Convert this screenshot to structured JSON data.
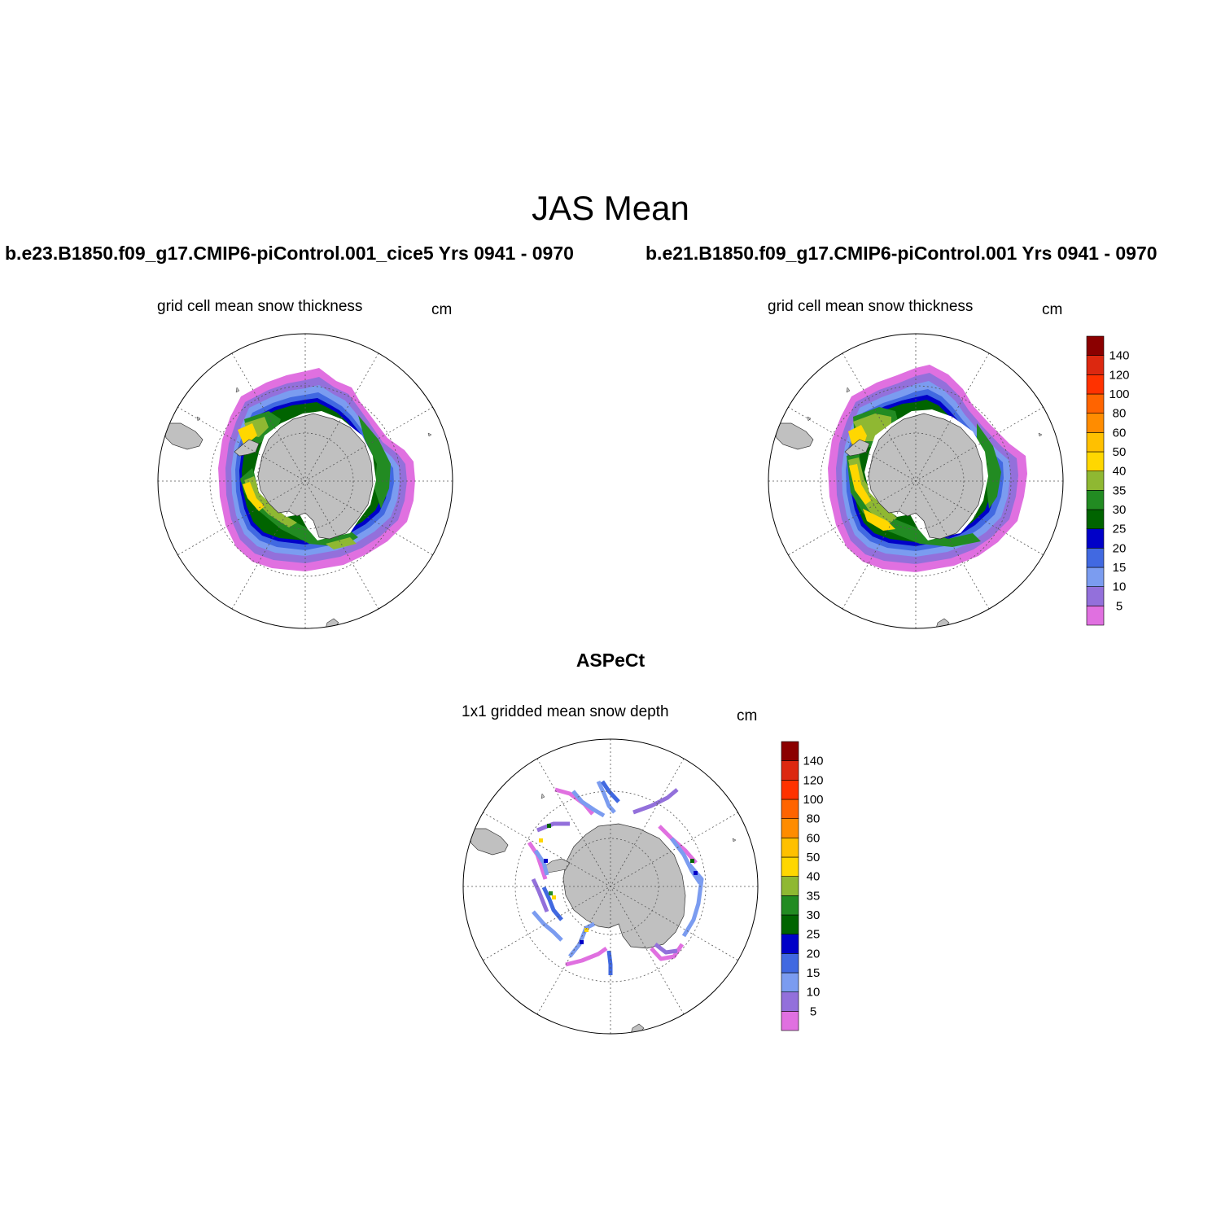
{
  "title": "JAS Mean",
  "panels": [
    {
      "case": "b.e23.B1850.f09_g17.CMIP6-piControl.001_cice5  Yrs 0941 - 0970",
      "variable": "grid cell mean snow thickness",
      "units": "cm"
    },
    {
      "case": "b.e21.B1850.f09_g17.CMIP6-piControl.001  Yrs 0941 - 0970",
      "variable": "grid cell mean snow thickness",
      "units": "cm"
    },
    {
      "case": "ASPeCt",
      "variable": "1x1 gridded mean snow depth",
      "units": "cm"
    }
  ],
  "colorbar": {
    "labels": [
      "5",
      "10",
      "15",
      "20",
      "25",
      "30",
      "35",
      "40",
      "50",
      "60",
      "80",
      "100",
      "120",
      "140"
    ],
    "colors": [
      "#e070e0",
      "#9370db",
      "#7b9cf0",
      "#4169e1",
      "#0000c8",
      "#006400",
      "#228b22",
      "#8fb832",
      "#ffd700",
      "#ffc000",
      "#ff8c00",
      "#ff6400",
      "#ff3200",
      "#dc2810",
      "#8b0000"
    ]
  },
  "colors": {
    "land": "#c0c0c0",
    "graticule": "#555555"
  }
}
